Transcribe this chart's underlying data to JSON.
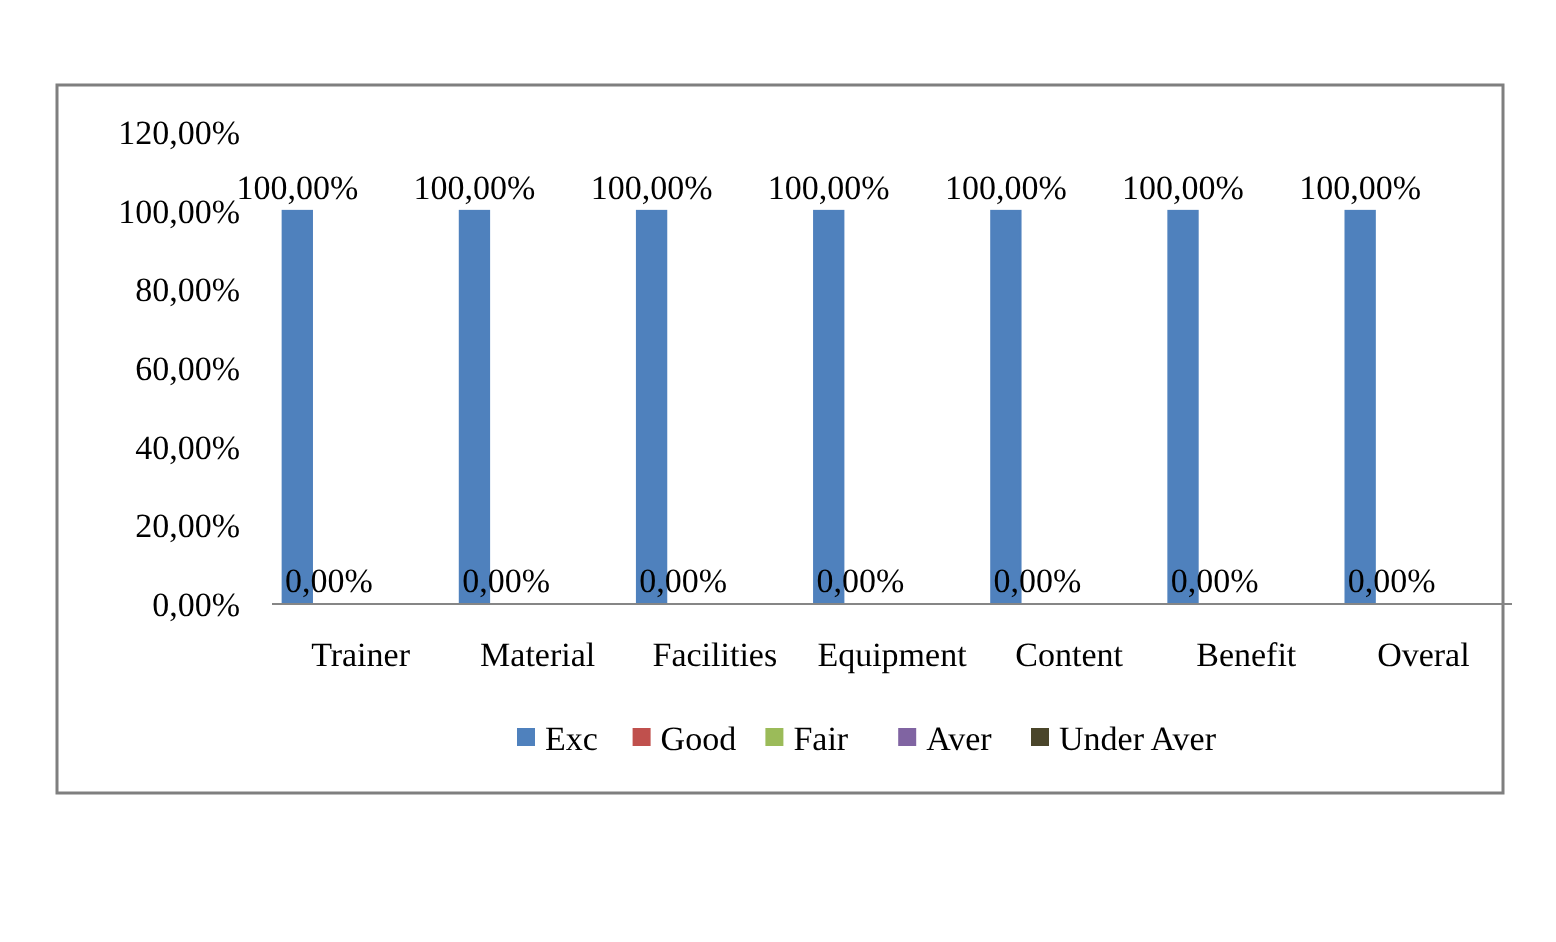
{
  "chart_data": {
    "type": "bar",
    "categories": [
      "Trainer",
      "Material",
      "Facilities",
      "Equipment",
      "Content",
      "Benefit",
      "Overal"
    ],
    "series": [
      {
        "name": "Exc",
        "color": "#4f81bd",
        "values": [
          100,
          100,
          100,
          100,
          100,
          100,
          100
        ],
        "value_labels": [
          "100,00%",
          "100,00%",
          "100,00%",
          "100,00%",
          "100,00%",
          "100,00%",
          "100,00%"
        ]
      },
      {
        "name": "Good",
        "color": "#c0504d",
        "values": [
          0,
          0,
          0,
          0,
          0,
          0,
          0
        ]
      },
      {
        "name": "Fair",
        "color": "#9bbb59",
        "values": [
          0,
          0,
          0,
          0,
          0,
          0,
          0
        ]
      },
      {
        "name": "Aver",
        "color": "#8064a2",
        "values": [
          0,
          0,
          0,
          0,
          0,
          0,
          0
        ]
      },
      {
        "name": "Under Aver",
        "color": "#4a452a",
        "values": [
          0,
          0,
          0,
          0,
          0,
          0,
          0
        ]
      }
    ],
    "ylim": [
      0,
      120
    ],
    "yticks": [
      {
        "value": 0,
        "label": "0,00%"
      },
      {
        "value": 20,
        "label": "20,00%"
      },
      {
        "value": 40,
        "label": "40,00%"
      },
      {
        "value": 60,
        "label": "60,00%"
      },
      {
        "value": 80,
        "label": "80,00%"
      },
      {
        "value": 100,
        "label": "100,00%"
      },
      {
        "value": 120,
        "label": "120,00%"
      }
    ],
    "annotations": [
      {
        "text": "0,00%",
        "x": "Trainer",
        "y": 0
      },
      {
        "text": "0,00%",
        "x": "Material",
        "y": 0
      },
      {
        "text": "0,00%",
        "x": "Facilities",
        "y": 0
      },
      {
        "text": "0,00%",
        "x": "Equipment",
        "y": 0
      },
      {
        "text": "0,00%",
        "x": "Content",
        "y": 0
      },
      {
        "text": "0,00%",
        "x": "Benefit",
        "y": 0
      },
      {
        "text": "0,00%",
        "x": "Overal",
        "y": 0
      }
    ],
    "grid": false,
    "legend": "bottom"
  }
}
